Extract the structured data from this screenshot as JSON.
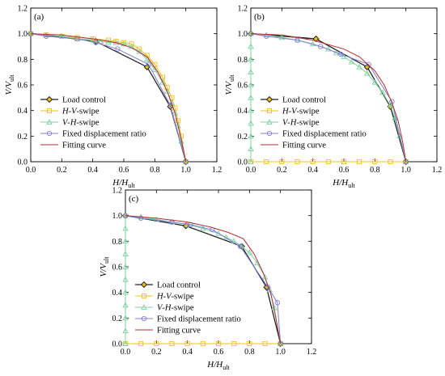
{
  "styles": {
    "load_control": "#222222",
    "load_control_marker": "#f2c200",
    "hv": "#f0c020",
    "vh": "#7fd0a0",
    "fixed": "#8080d8",
    "fit": "#b03030"
  },
  "chart_data": [
    {
      "type": "line",
      "panel": "(a)",
      "xlabel": "H/H_ult",
      "ylabel": "V/V_ult",
      "xlim": [
        0,
        1.2
      ],
      "ylim": [
        0,
        1.2
      ],
      "xticks": [
        0.0,
        0.2,
        0.4,
        0.6,
        0.8,
        1.0,
        1.2
      ],
      "yticks": [
        0.0,
        0.2,
        0.4,
        0.6,
        0.8,
        1.0,
        1.2
      ],
      "legend": "lower-left",
      "series": [
        {
          "name": "Load control",
          "key": "load_control",
          "x": [
            0,
            0.42,
            0.75,
            0.9,
            1.0
          ],
          "y": [
            1.0,
            0.94,
            0.74,
            0.43,
            0.0
          ]
        },
        {
          "name": "H-V-swipe",
          "key": "hv",
          "x": [
            0,
            0.1,
            0.2,
            0.3,
            0.4,
            0.5,
            0.55,
            0.6,
            0.65,
            0.7,
            0.75,
            0.8,
            0.85,
            0.88,
            0.91,
            0.93,
            0.95,
            0.97,
            1.0
          ],
          "y": [
            1.0,
            0.99,
            0.98,
            0.97,
            0.96,
            0.95,
            0.94,
            0.93,
            0.92,
            0.88,
            0.83,
            0.76,
            0.66,
            0.58,
            0.5,
            0.42,
            0.32,
            0.2,
            0.0
          ]
        },
        {
          "name": "V-H-swipe",
          "key": "vh",
          "x": [
            0,
            0.1,
            0.2,
            0.3,
            0.4,
            0.45,
            0.5,
            0.55,
            0.6,
            0.65,
            0.7,
            0.75,
            0.8,
            0.85,
            0.88,
            0.91,
            0.93,
            0.95,
            0.97,
            1.0
          ],
          "y": [
            1.0,
            0.99,
            0.98,
            0.96,
            0.95,
            0.94,
            0.93,
            0.93,
            0.92,
            0.9,
            0.86,
            0.8,
            0.72,
            0.62,
            0.55,
            0.46,
            0.38,
            0.28,
            0.16,
            0.0
          ]
        },
        {
          "name": "Fixed displacement ratio",
          "key": "fixed",
          "x": [
            0,
            0.1,
            0.3,
            0.42,
            0.56,
            0.76,
            0.9,
            1.0
          ],
          "y": [
            1.0,
            0.98,
            0.96,
            0.93,
            0.88,
            0.76,
            0.44,
            0.0
          ]
        },
        {
          "name": "Fitting curve",
          "key": "fit",
          "x": [
            0,
            0.2,
            0.4,
            0.55,
            0.65,
            0.75,
            0.82,
            0.88,
            0.93,
            0.97,
            1.0
          ],
          "y": [
            1.0,
            0.99,
            0.96,
            0.93,
            0.89,
            0.82,
            0.7,
            0.55,
            0.38,
            0.18,
            0.0
          ]
        }
      ]
    },
    {
      "type": "line",
      "panel": "(b)",
      "xlabel": "H/H_ult",
      "ylabel": "V/V_ult",
      "xlim": [
        0,
        1.2
      ],
      "ylim": [
        0,
        1.2
      ],
      "xticks": [
        0.0,
        0.2,
        0.4,
        0.6,
        0.8,
        1.0,
        1.2
      ],
      "yticks": [
        0.0,
        0.2,
        0.4,
        0.6,
        0.8,
        1.0,
        1.2
      ],
      "legend": "lower-left",
      "series": [
        {
          "name": "Load control",
          "key": "load_control",
          "x": [
            0,
            0.42,
            0.75,
            0.9,
            1.0
          ],
          "y": [
            1.0,
            0.96,
            0.74,
            0.43,
            0.0
          ]
        },
        {
          "name": "H-V-swipe",
          "key": "hv",
          "x": [
            0,
            0.1,
            0.2,
            0.3,
            0.4,
            0.5,
            0.6,
            0.7,
            0.8,
            0.9,
            1.0
          ],
          "y": [
            0,
            0,
            0,
            0,
            0,
            0,
            0,
            0,
            0,
            0,
            0
          ]
        },
        {
          "name": "V-H-swipe",
          "key": "vh",
          "x": [
            0,
            0,
            0,
            0,
            0,
            0,
            0,
            0,
            0,
            0,
            0,
            0.1,
            0.2,
            0.3,
            0.4,
            0.5,
            0.55,
            0.6,
            0.65,
            0.7,
            0.75,
            0.8,
            0.85,
            0.9,
            0.93,
            0.96,
            1.0
          ],
          "y": [
            0,
            0.1,
            0.2,
            0.3,
            0.4,
            0.5,
            0.6,
            0.7,
            0.8,
            0.9,
            1.0,
            0.99,
            0.97,
            0.95,
            0.92,
            0.88,
            0.85,
            0.82,
            0.78,
            0.74,
            0.69,
            0.62,
            0.54,
            0.44,
            0.34,
            0.2,
            0.0
          ]
        },
        {
          "name": "Fixed displacement ratio",
          "key": "fixed",
          "x": [
            0,
            0.1,
            0.3,
            0.45,
            0.58,
            0.76,
            0.91,
            1.0
          ],
          "y": [
            1.0,
            0.98,
            0.95,
            0.9,
            0.84,
            0.76,
            0.47,
            0.0
          ]
        },
        {
          "name": "Fitting curve",
          "key": "fit",
          "x": [
            0,
            0.2,
            0.4,
            0.6,
            0.7,
            0.8,
            0.86,
            0.91,
            0.95,
            0.98,
            1.0
          ],
          "y": [
            1.0,
            0.99,
            0.95,
            0.88,
            0.82,
            0.71,
            0.6,
            0.46,
            0.32,
            0.15,
            0.0
          ]
        }
      ]
    },
    {
      "type": "line",
      "panel": "(c)",
      "xlabel": "H/H_ult",
      "ylabel": "V/V_ult",
      "xlim": [
        0,
        1.2
      ],
      "ylim": [
        0,
        1.2
      ],
      "xticks": [
        0.0,
        0.2,
        0.4,
        0.6,
        0.8,
        1.0,
        1.2
      ],
      "yticks": [
        0.0,
        0.2,
        0.4,
        0.6,
        0.8,
        1.0,
        1.2
      ],
      "legend": "lower-left",
      "series": [
        {
          "name": "Load control",
          "key": "load_control",
          "x": [
            0,
            0.39,
            0.75,
            0.91,
            1.0
          ],
          "y": [
            1.0,
            0.92,
            0.76,
            0.44,
            0.0
          ]
        },
        {
          "name": "H-V-swipe",
          "key": "hv",
          "x": [
            0,
            0.1,
            0.2,
            0.3,
            0.4,
            0.5,
            0.6,
            0.7,
            0.8,
            0.9,
            1.0
          ],
          "y": [
            0,
            0,
            0,
            0,
            0,
            0,
            0,
            0,
            0,
            0,
            0
          ]
        },
        {
          "name": "V-H-swipe",
          "key": "vh",
          "x": [
            0,
            0,
            0,
            0,
            0,
            0,
            0,
            0,
            0,
            0,
            0,
            0.1,
            0.2,
            0.3,
            0.4,
            0.5,
            0.6,
            0.65,
            0.7,
            0.75,
            0.8,
            0.85,
            0.9,
            0.93,
            0.96,
            1.0
          ],
          "y": [
            0,
            0.1,
            0.2,
            0.3,
            0.4,
            0.5,
            0.6,
            0.7,
            0.8,
            0.9,
            1.0,
            0.99,
            0.97,
            0.95,
            0.93,
            0.9,
            0.86,
            0.83,
            0.8,
            0.76,
            0.71,
            0.63,
            0.52,
            0.42,
            0.28,
            0.0
          ]
        },
        {
          "name": "Fixed displacement ratio",
          "key": "fixed",
          "x": [
            0,
            0.1,
            0.3,
            0.42,
            0.56,
            0.74,
            0.92,
            0.98,
            1.0
          ],
          "y": [
            1.0,
            0.98,
            0.95,
            0.93,
            0.89,
            0.76,
            0.44,
            0.32,
            0.0
          ]
        },
        {
          "name": "Fitting curve",
          "key": "fit",
          "x": [
            0,
            0.2,
            0.4,
            0.55,
            0.66,
            0.76,
            0.83,
            0.89,
            0.94,
            0.97,
            1.0
          ],
          "y": [
            1.0,
            0.98,
            0.95,
            0.91,
            0.87,
            0.82,
            0.7,
            0.55,
            0.38,
            0.2,
            0.0
          ]
        }
      ]
    }
  ]
}
